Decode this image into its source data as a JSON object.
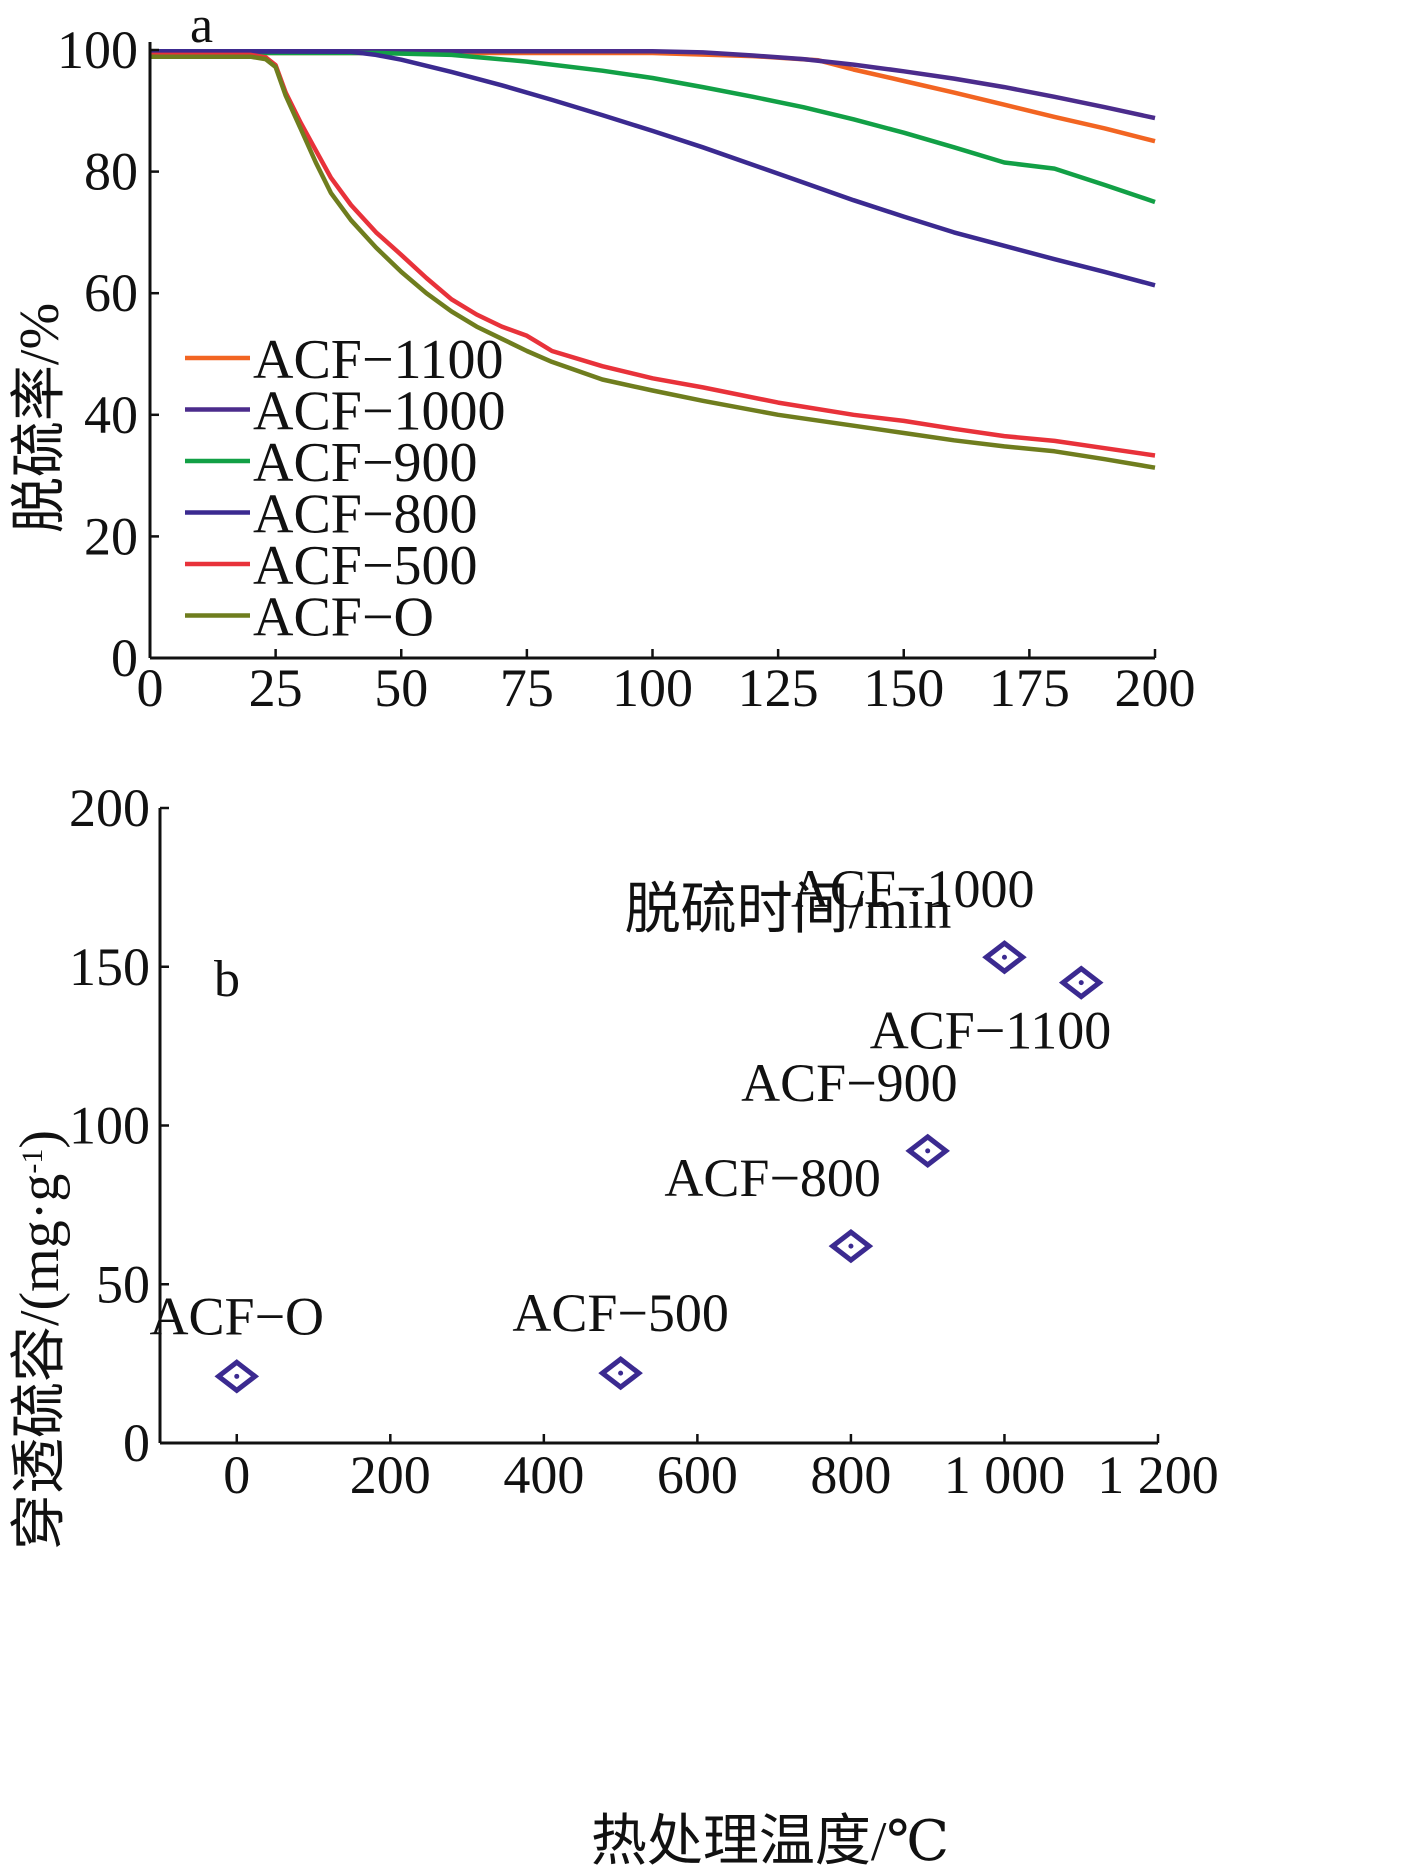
{
  "chart_data": [
    {
      "panel": "a",
      "type": "line",
      "xlabel": "脱硫时间/min",
      "ylabel": "脱硫率/%",
      "xlim": [
        0,
        200
      ],
      "ylim": [
        0,
        100
      ],
      "xticks": [
        0,
        25,
        50,
        75,
        100,
        125,
        150,
        175,
        200
      ],
      "yticks": [
        0,
        20,
        40,
        60,
        80,
        100
      ],
      "xtick_labels": [
        "0",
        "25",
        "50",
        "75",
        "100",
        "125",
        "150",
        "175",
        "200"
      ],
      "ytick_labels": [
        "0",
        "20",
        "40",
        "60",
        "80",
        "100"
      ],
      "legend_position": "lower-left",
      "series": [
        {
          "name": "ACF−1100",
          "color": "#f26522",
          "x": [
            0,
            20,
            60,
            100,
            120,
            133,
            140,
            150,
            160,
            170,
            180,
            190,
            200
          ],
          "y": [
            99.5,
            99.5,
            99.5,
            99.5,
            99.0,
            98.3,
            96.8,
            94.9,
            93.0,
            91.0,
            89.0,
            87.1,
            85.0
          ]
        },
        {
          "name": "ACF−1000",
          "color": "#4b2c8c",
          "x": [
            0,
            20,
            60,
            100,
            110,
            120,
            130,
            140,
            150,
            160,
            170,
            180,
            190,
            200
          ],
          "y": [
            99.8,
            99.8,
            99.8,
            99.8,
            99.6,
            99.1,
            98.5,
            97.6,
            96.5,
            95.3,
            93.9,
            92.3,
            90.6,
            88.8
          ]
        },
        {
          "name": "ACF−900",
          "color": "#12a046",
          "x": [
            0,
            25,
            45,
            60,
            75,
            90,
            100,
            110,
            120,
            130,
            140,
            150,
            160,
            170,
            180,
            190,
            200
          ],
          "y": [
            99.6,
            99.5,
            99.5,
            99.2,
            98.1,
            96.6,
            95.4,
            93.9,
            92.3,
            90.6,
            88.6,
            86.4,
            84.0,
            81.5,
            80.5,
            77.8,
            75.0
          ]
        },
        {
          "name": "ACF−800",
          "color": "#3b2a90",
          "x": [
            0,
            40,
            45,
            50,
            60,
            70,
            80,
            90,
            100,
            110,
            120,
            130,
            140,
            150,
            160,
            170,
            180,
            190,
            200
          ],
          "y": [
            99.8,
            99.7,
            99.2,
            98.4,
            96.4,
            94.2,
            91.8,
            89.3,
            86.7,
            84.0,
            81.1,
            78.2,
            75.3,
            72.6,
            70.0,
            67.8,
            65.6,
            63.5,
            61.3
          ]
        },
        {
          "name": "ACF−500",
          "color": "#e8323a",
          "x": [
            0,
            20,
            23,
            25,
            27,
            30,
            33,
            36,
            40,
            45,
            50,
            55,
            60,
            65,
            70,
            75,
            77,
            80,
            90,
            100,
            110,
            125,
            140,
            150,
            160,
            170,
            180,
            190,
            200
          ],
          "y": [
            99.2,
            99.2,
            98.8,
            97.5,
            93.0,
            88.0,
            83.5,
            79.0,
            74.5,
            70.0,
            66.3,
            62.5,
            59.0,
            56.5,
            54.5,
            53.0,
            52.0,
            50.5,
            48.0,
            46.0,
            44.5,
            42.0,
            40.0,
            39.0,
            37.7,
            36.5,
            35.7,
            34.5,
            33.3
          ]
        },
        {
          "name": "ACF−O",
          "color": "#6f7d1e",
          "x": [
            0,
            20,
            23,
            25,
            27,
            30,
            33,
            36,
            40,
            45,
            50,
            55,
            60,
            65,
            70,
            75,
            80,
            90,
            100,
            110,
            125,
            140,
            150,
            160,
            170,
            180,
            190,
            200
          ],
          "y": [
            98.9,
            98.9,
            98.5,
            97.2,
            92.5,
            87.0,
            81.5,
            76.5,
            72.0,
            67.5,
            63.5,
            60.0,
            57.0,
            54.5,
            52.5,
            50.5,
            48.7,
            45.8,
            44.0,
            42.3,
            40.0,
            38.2,
            37.0,
            35.8,
            34.8,
            34.0,
            32.7,
            31.3
          ]
        }
      ]
    },
    {
      "panel": "b",
      "type": "scatter",
      "xlabel": "热处理温度/℃",
      "ylabel": "穿透硫容/(mg·g-1)",
      "ylabel_main": "穿透硫容/(mg·g",
      "ylabel_sup": "-1",
      "ylabel_end": ")",
      "xlim": [
        -100,
        1200
      ],
      "ylim": [
        0,
        200
      ],
      "xticks": [
        0,
        200,
        400,
        600,
        800,
        1000,
        1200
      ],
      "yticks": [
        0,
        50,
        100,
        150,
        200
      ],
      "xtick_labels": [
        "0",
        "200",
        "400",
        "600",
        "800",
        "1 000",
        "1 200"
      ],
      "ytick_labels": [
        "0",
        "50",
        "100",
        "150",
        "200"
      ],
      "marker": "diamond",
      "marker_color": "#3b2a90",
      "points": [
        {
          "label": "ACF−O",
          "x": 0,
          "y": 21,
          "label_pos": "above"
        },
        {
          "label": "ACF−500",
          "x": 500,
          "y": 22,
          "label_pos": "above"
        },
        {
          "label": "ACF−800",
          "x": 800,
          "y": 62,
          "label_pos": "above-left"
        },
        {
          "label": "ACF−900",
          "x": 900,
          "y": 92,
          "label_pos": "above-left"
        },
        {
          "label": "ACF−1000",
          "x": 1000,
          "y": 153,
          "label_pos": "above-left"
        },
        {
          "label": "ACF−1100",
          "x": 1100,
          "y": 145,
          "label_pos": "below-left"
        }
      ]
    }
  ]
}
